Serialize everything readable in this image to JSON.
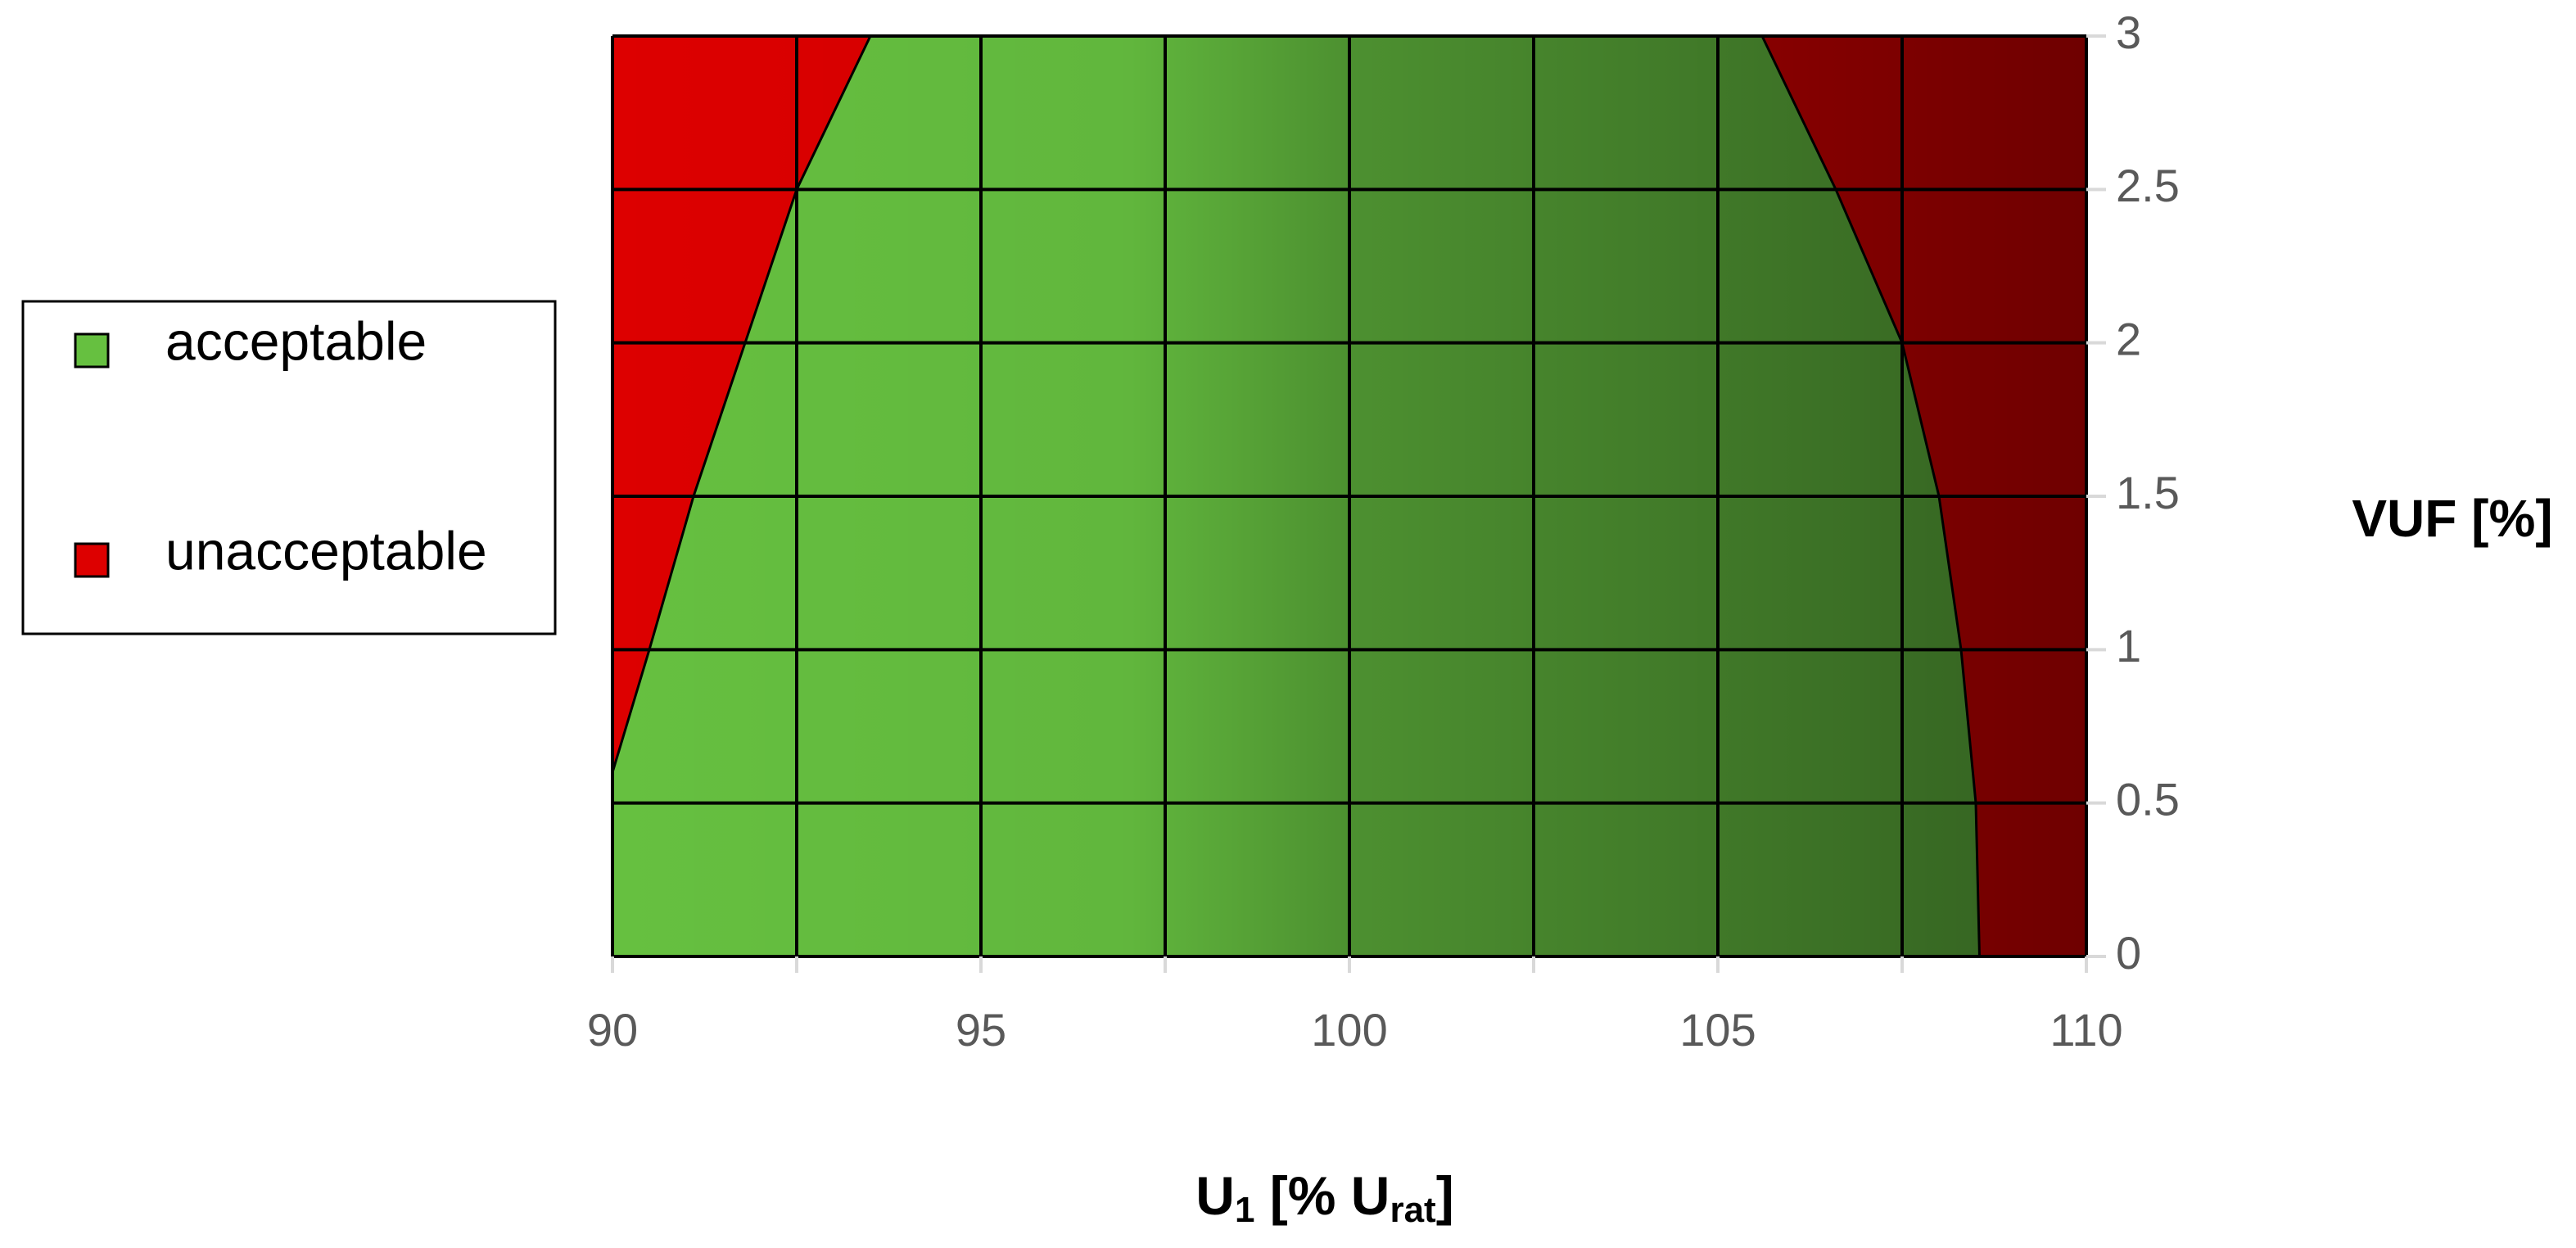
{
  "chart_data": {
    "type": "region",
    "x_label": [
      "U",
      "1",
      " [% U",
      "rat",
      "]"
    ],
    "y_label": "VUF [%]",
    "xlim": [
      90,
      110
    ],
    "xticks": [
      90,
      95,
      100,
      105,
      110
    ],
    "xminorticks": [
      92.5,
      97.5,
      102.5,
      107.5
    ],
    "ylim": [
      0,
      3
    ],
    "yticks": [
      0,
      0.5,
      1,
      1.5,
      2,
      2.5,
      3
    ],
    "grid": true,
    "series": [
      {
        "name": "acceptable",
        "color": "#66c040"
      },
      {
        "name": "unacceptable",
        "color": "#dd0000"
      }
    ],
    "boundaries": [
      {
        "x": [
          90,
          90.5,
          91.1,
          91.8,
          92.5,
          93.5
        ],
        "y": [
          0.6,
          1,
          1.5,
          2,
          2.5,
          3
        ]
      },
      {
        "x": [
          105.6,
          106.6,
          107.5,
          108,
          108.3,
          108.5,
          108.55
        ],
        "y": [
          3,
          2.5,
          2,
          1.5,
          1,
          0.5,
          0
        ]
      }
    ],
    "legend": "left"
  }
}
